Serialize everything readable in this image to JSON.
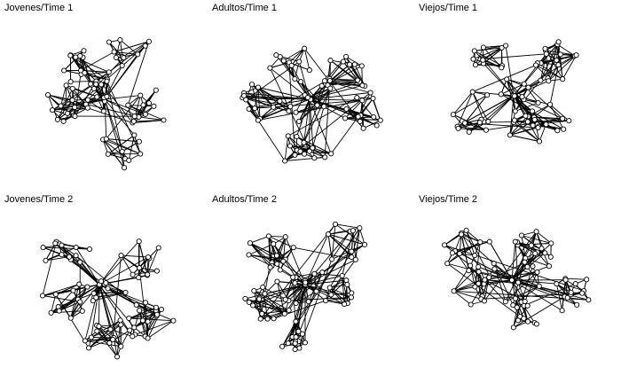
{
  "panels": [
    {
      "title": "Jovenes/Time 1"
    },
    {
      "title": "Adultos/Time 1"
    },
    {
      "title": "Viejos/Time 1"
    },
    {
      "title": "Jovenes/Time 2"
    },
    {
      "title": "Adultos/Time 2"
    },
    {
      "title": "Viejos/Time 2"
    }
  ]
}
